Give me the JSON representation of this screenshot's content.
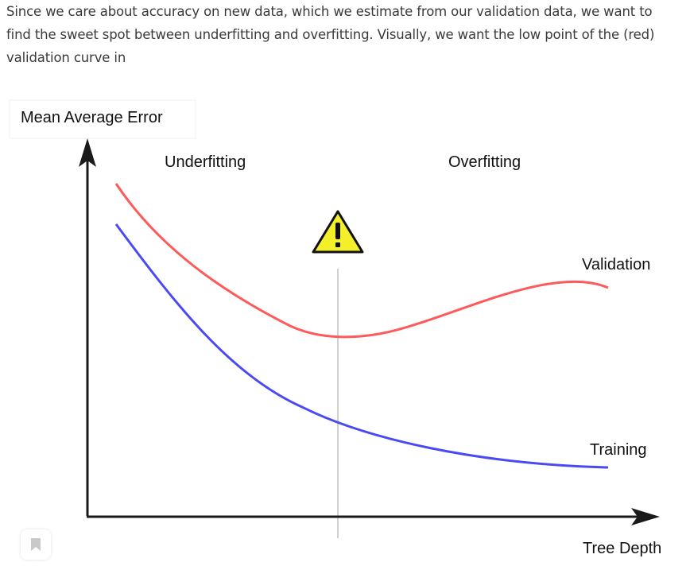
{
  "intro": {
    "line1": "Since we care about accuracy on new data, which we estimate from our validation data, we want to",
    "line2": "find the sweet spot between underfitting and overfitting. Visually, we want the low point of the (red)",
    "line3": "validation curve in"
  },
  "figure": {
    "y_axis_label": "Mean Average Error",
    "x_axis_label": "Tree Depth",
    "region_left_label": "Underfitting",
    "region_right_label": "Overfitting",
    "warning_icon": "warning-triangle-icon",
    "validation_label": "Validation",
    "training_label": "Training",
    "colors": {
      "validation": "#ff5a5a",
      "training": "#4a4af5",
      "axis": "#1a1a1a",
      "divider": "#d0d0d0",
      "warning_fill": "#f3f02a"
    }
  },
  "bookmark": {
    "icon": "bookmark-icon"
  }
}
